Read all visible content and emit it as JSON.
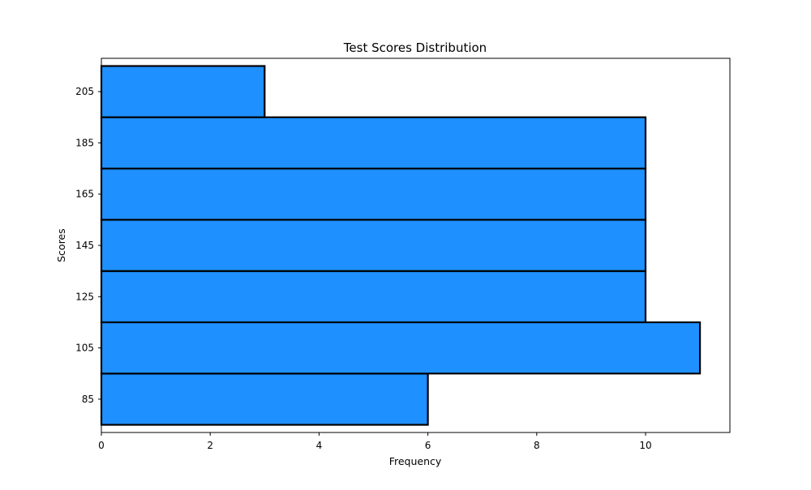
{
  "chart_data": {
    "type": "bar",
    "orientation": "horizontal",
    "title": "Test Scores Distribution",
    "xlabel": "Frequency",
    "ylabel": "Scores",
    "categories": [
      "85",
      "105",
      "125",
      "145",
      "165",
      "185",
      "205"
    ],
    "values": [
      6,
      11,
      10,
      10,
      10,
      10,
      3
    ],
    "bin_edges": [
      75,
      95,
      115,
      135,
      155,
      175,
      195,
      215
    ],
    "xlim": [
      0,
      11.55
    ],
    "ylim": [
      72,
      218
    ],
    "xticks": [
      "0",
      "2",
      "4",
      "6",
      "8",
      "10"
    ],
    "yticks": [
      "85",
      "105",
      "125",
      "145",
      "165",
      "185",
      "205"
    ],
    "bar_color": "#1e90ff",
    "edge_color": "#000000",
    "grid": false,
    "legend": "none"
  }
}
